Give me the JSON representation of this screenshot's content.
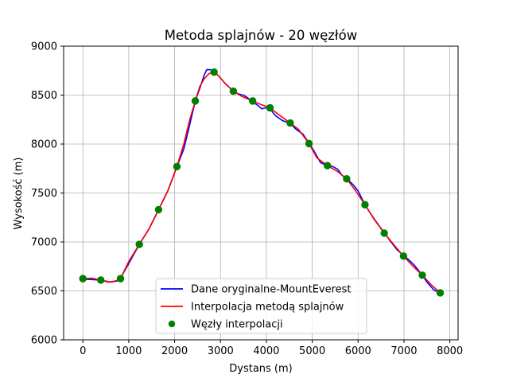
{
  "chart_data": {
    "type": "line",
    "title": "Metoda splajnów - 20 węzłów",
    "xlabel": "Dystans (m)",
    "ylabel": "Wysokość (m)",
    "xlim": [
      -420,
      8180
    ],
    "ylim": [
      6000,
      9000
    ],
    "xticks": [
      0,
      1000,
      2000,
      3000,
      4000,
      5000,
      6000,
      7000,
      8000
    ],
    "yticks": [
      6000,
      6500,
      7000,
      7500,
      8000,
      8500,
      9000
    ],
    "grid": true,
    "legend_position": "lower-center",
    "series": [
      {
        "name": "Dane oryginalne-MountEverest",
        "color": "#0000ff",
        "x": [
          0,
          200,
          390,
          600,
          740,
          820,
          1000,
          1230,
          1450,
          1650,
          1850,
          2050,
          2200,
          2330,
          2450,
          2550,
          2640,
          2700,
          2780,
          2860,
          2950,
          3100,
          3280,
          3400,
          3500,
          3600,
          3700,
          3800,
          3900,
          3980,
          4080,
          4200,
          4350,
          4520,
          4650,
          4800,
          4930,
          5050,
          5180,
          5330,
          5450,
          5560,
          5650,
          5750,
          5900,
          6000,
          6150,
          6300,
          6450,
          6580,
          6700,
          6850,
          6990,
          7100,
          7230,
          7400,
          7500,
          7650,
          7790
        ],
        "y": [
          6620,
          6615,
          6610,
          6590,
          6600,
          6630,
          6780,
          6975,
          7140,
          7330,
          7520,
          7770,
          7950,
          8200,
          8440,
          8570,
          8700,
          8760,
          8760,
          8740,
          8700,
          8620,
          8540,
          8510,
          8500,
          8470,
          8430,
          8400,
          8360,
          8370,
          8360,
          8290,
          8240,
          8210,
          8150,
          8100,
          8010,
          7920,
          7810,
          7780,
          7770,
          7740,
          7680,
          7650,
          7580,
          7520,
          7380,
          7270,
          7170,
          7090,
          7010,
          6920,
          6860,
          6820,
          6760,
          6660,
          6590,
          6510,
          6480
        ]
      },
      {
        "name": "Interpolacja metodą splajnów",
        "color": "#ff0000",
        "x": [
          0,
          200,
          390,
          550,
          700,
          820,
          1000,
          1230,
          1450,
          1650,
          1850,
          2050,
          2200,
          2330,
          2450,
          2550,
          2650,
          2750,
          2860,
          2950,
          3100,
          3280,
          3450,
          3700,
          3900,
          4080,
          4300,
          4520,
          4700,
          4930,
          5100,
          5330,
          5550,
          5750,
          5950,
          6150,
          6350,
          6570,
          6800,
          6990,
          7200,
          7400,
          7600,
          7790
        ],
        "y": [
          6625,
          6630,
          6610,
          6590,
          6600,
          6625,
          6800,
          6975,
          7140,
          7330,
          7520,
          7770,
          8000,
          8250,
          8440,
          8590,
          8670,
          8720,
          8735,
          8700,
          8620,
          8540,
          8490,
          8440,
          8400,
          8370,
          8290,
          8215,
          8150,
          8005,
          7860,
          7780,
          7720,
          7645,
          7520,
          7380,
          7230,
          7090,
          6960,
          6855,
          6750,
          6660,
          6560,
          6480
        ]
      },
      {
        "name": "Węzły interpolacji",
        "color": "#008000",
        "x": [
          0,
          390,
          820,
          1230,
          1650,
          2050,
          2450,
          2860,
          3280,
          3700,
          4080,
          4520,
          4930,
          5330,
          5750,
          6150,
          6570,
          6990,
          7400,
          7790
        ],
        "y": [
          6625,
          6610,
          6625,
          6975,
          7330,
          7770,
          8440,
          8735,
          8540,
          8440,
          8370,
          8215,
          8005,
          7780,
          7645,
          7380,
          7090,
          6855,
          6660,
          6480
        ]
      }
    ]
  }
}
